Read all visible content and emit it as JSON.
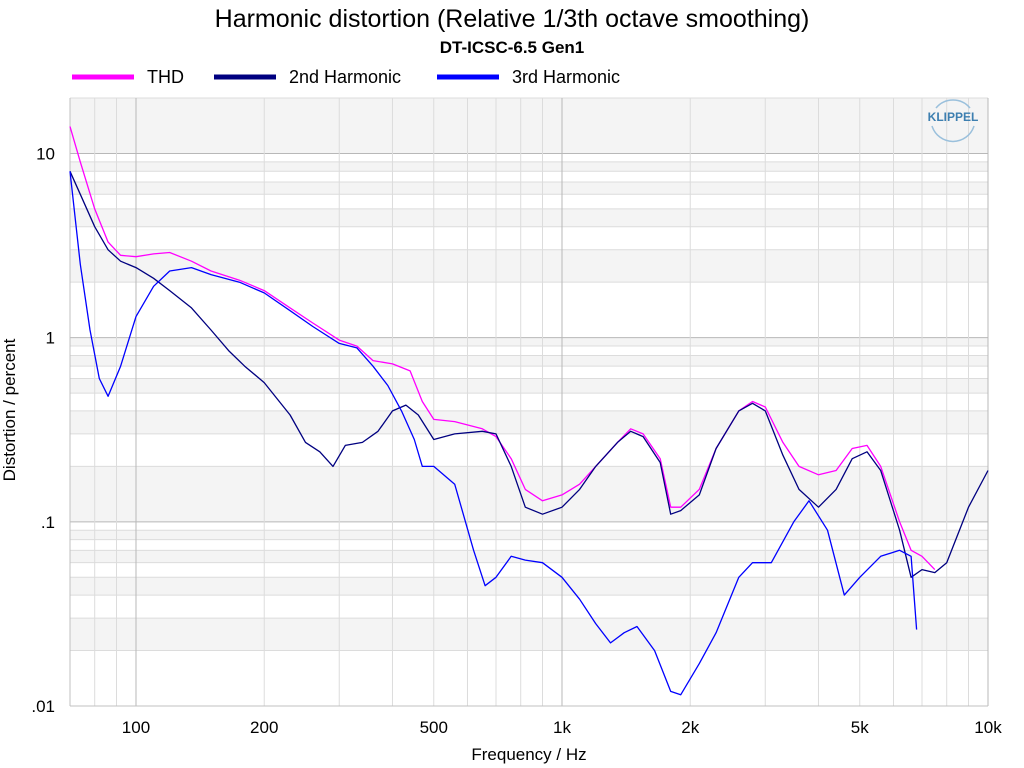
{
  "chart_data": {
    "type": "line",
    "title": "Harmonic distortion (Relative 1/3th octave smoothing)",
    "subtitle": "DT-ICSC-6.5 Gen1",
    "xlabel": "Frequency / Hz",
    "ylabel": "Distortion / percent",
    "x_scale": "log",
    "y_scale": "log",
    "xlim": [
      70,
      10000
    ],
    "ylim": [
      0.01,
      20
    ],
    "x_ticks": [
      {
        "value": 100,
        "label": "100"
      },
      {
        "value": 200,
        "label": "200"
      },
      {
        "value": 500,
        "label": "500"
      },
      {
        "value": 1000,
        "label": "1k"
      },
      {
        "value": 2000,
        "label": "2k"
      },
      {
        "value": 5000,
        "label": "5k"
      },
      {
        "value": 10000,
        "label": "10k"
      }
    ],
    "y_ticks": [
      {
        "value": 10,
        "label": "10"
      },
      {
        "value": 1,
        "label": "1"
      },
      {
        "value": 0.1,
        "label": ".1"
      },
      {
        "value": 0.01,
        "label": ".01"
      }
    ],
    "grid": true,
    "legend_position": "top-left",
    "logo_text": "KLIPPEL",
    "series": [
      {
        "name": "THD",
        "color": "#ff00ff",
        "points": [
          [
            70,
            14
          ],
          [
            74,
            9
          ],
          [
            80,
            5
          ],
          [
            86,
            3.3
          ],
          [
            92,
            2.8
          ],
          [
            100,
            2.75
          ],
          [
            110,
            2.85
          ],
          [
            120,
            2.9
          ],
          [
            135,
            2.6
          ],
          [
            150,
            2.3
          ],
          [
            175,
            2.05
          ],
          [
            200,
            1.8
          ],
          [
            230,
            1.45
          ],
          [
            260,
            1.2
          ],
          [
            300,
            0.97
          ],
          [
            330,
            0.9
          ],
          [
            360,
            0.75
          ],
          [
            400,
            0.72
          ],
          [
            440,
            0.66
          ],
          [
            470,
            0.45
          ],
          [
            500,
            0.36
          ],
          [
            560,
            0.35
          ],
          [
            650,
            0.32
          ],
          [
            700,
            0.29
          ],
          [
            760,
            0.22
          ],
          [
            820,
            0.15
          ],
          [
            900,
            0.13
          ],
          [
            1000,
            0.14
          ],
          [
            1100,
            0.16
          ],
          [
            1200,
            0.2
          ],
          [
            1350,
            0.27
          ],
          [
            1450,
            0.32
          ],
          [
            1550,
            0.3
          ],
          [
            1700,
            0.22
          ],
          [
            1800,
            0.12
          ],
          [
            1900,
            0.12
          ],
          [
            2100,
            0.15
          ],
          [
            2300,
            0.25
          ],
          [
            2600,
            0.4
          ],
          [
            2800,
            0.45
          ],
          [
            3000,
            0.42
          ],
          [
            3300,
            0.27
          ],
          [
            3600,
            0.2
          ],
          [
            4000,
            0.18
          ],
          [
            4400,
            0.19
          ],
          [
            4800,
            0.25
          ],
          [
            5200,
            0.26
          ],
          [
            5600,
            0.2
          ],
          [
            6200,
            0.1
          ],
          [
            6600,
            0.07
          ],
          [
            7000,
            0.065
          ],
          [
            7500,
            0.055
          ]
        ]
      },
      {
        "name": "2nd Harmonic",
        "color": "#000080",
        "points": [
          [
            70,
            8
          ],
          [
            74,
            6
          ],
          [
            80,
            4
          ],
          [
            86,
            3
          ],
          [
            92,
            2.6
          ],
          [
            100,
            2.4
          ],
          [
            110,
            2.1
          ],
          [
            120,
            1.8
          ],
          [
            135,
            1.45
          ],
          [
            150,
            1.1
          ],
          [
            165,
            0.85
          ],
          [
            180,
            0.7
          ],
          [
            200,
            0.57
          ],
          [
            230,
            0.38
          ],
          [
            250,
            0.27
          ],
          [
            270,
            0.24
          ],
          [
            290,
            0.2
          ],
          [
            310,
            0.26
          ],
          [
            340,
            0.27
          ],
          [
            370,
            0.31
          ],
          [
            400,
            0.4
          ],
          [
            430,
            0.43
          ],
          [
            460,
            0.38
          ],
          [
            500,
            0.28
          ],
          [
            560,
            0.3
          ],
          [
            650,
            0.31
          ],
          [
            700,
            0.3
          ],
          [
            760,
            0.2
          ],
          [
            820,
            0.12
          ],
          [
            900,
            0.11
          ],
          [
            1000,
            0.12
          ],
          [
            1100,
            0.15
          ],
          [
            1200,
            0.2
          ],
          [
            1350,
            0.27
          ],
          [
            1450,
            0.31
          ],
          [
            1550,
            0.29
          ],
          [
            1700,
            0.21
          ],
          [
            1800,
            0.11
          ],
          [
            1900,
            0.115
          ],
          [
            2100,
            0.14
          ],
          [
            2300,
            0.25
          ],
          [
            2600,
            0.4
          ],
          [
            2800,
            0.44
          ],
          [
            3000,
            0.4
          ],
          [
            3300,
            0.23
          ],
          [
            3600,
            0.15
          ],
          [
            4000,
            0.12
          ],
          [
            4400,
            0.15
          ],
          [
            4800,
            0.22
          ],
          [
            5200,
            0.24
          ],
          [
            5600,
            0.19
          ],
          [
            6200,
            0.09
          ],
          [
            6600,
            0.05
          ],
          [
            7000,
            0.055
          ],
          [
            7500,
            0.053
          ],
          [
            8000,
            0.06
          ],
          [
            9000,
            0.12
          ],
          [
            10000,
            0.19
          ]
        ]
      },
      {
        "name": "3rd Harmonic",
        "color": "#0000ff",
        "points": [
          [
            70,
            8
          ],
          [
            74,
            2.5
          ],
          [
            78,
            1.1
          ],
          [
            82,
            0.6
          ],
          [
            86,
            0.48
          ],
          [
            92,
            0.7
          ],
          [
            100,
            1.3
          ],
          [
            110,
            1.9
          ],
          [
            120,
            2.3
          ],
          [
            135,
            2.4
          ],
          [
            150,
            2.2
          ],
          [
            175,
            2.0
          ],
          [
            200,
            1.75
          ],
          [
            230,
            1.4
          ],
          [
            260,
            1.15
          ],
          [
            300,
            0.93
          ],
          [
            330,
            0.88
          ],
          [
            360,
            0.7
          ],
          [
            390,
            0.55
          ],
          [
            420,
            0.4
          ],
          [
            450,
            0.28
          ],
          [
            470,
            0.2
          ],
          [
            500,
            0.2
          ],
          [
            560,
            0.16
          ],
          [
            620,
            0.07
          ],
          [
            660,
            0.045
          ],
          [
            700,
            0.05
          ],
          [
            760,
            0.065
          ],
          [
            820,
            0.062
          ],
          [
            900,
            0.06
          ],
          [
            1000,
            0.05
          ],
          [
            1100,
            0.038
          ],
          [
            1200,
            0.028
          ],
          [
            1300,
            0.022
          ],
          [
            1400,
            0.025
          ],
          [
            1500,
            0.027
          ],
          [
            1650,
            0.02
          ],
          [
            1800,
            0.012
          ],
          [
            1900,
            0.0115
          ],
          [
            2100,
            0.017
          ],
          [
            2300,
            0.025
          ],
          [
            2600,
            0.05
          ],
          [
            2800,
            0.06
          ],
          [
            3100,
            0.06
          ],
          [
            3500,
            0.1
          ],
          [
            3800,
            0.13
          ],
          [
            4200,
            0.09
          ],
          [
            4600,
            0.04
          ],
          [
            5000,
            0.05
          ],
          [
            5600,
            0.065
          ],
          [
            6200,
            0.07
          ],
          [
            6600,
            0.065
          ],
          [
            6800,
            0.026
          ]
        ]
      }
    ]
  }
}
